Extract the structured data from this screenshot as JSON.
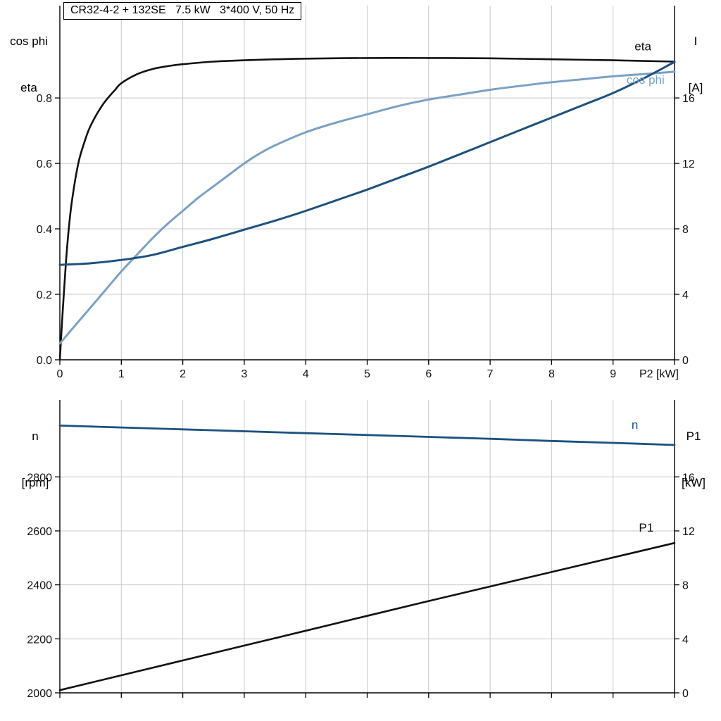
{
  "colors": {
    "black": "#111111",
    "dark_blue": "#1c517f",
    "light_blue": "#7aa1c6",
    "grid": "#c8c8c8",
    "axis": "#000000"
  },
  "chart_data": [
    {
      "type": "line",
      "title": "CR32-4-2 + 132SE   7.5 kW   3*400 V, 50 Hz",
      "x_axis": {
        "min": 0,
        "max": 10,
        "label": "P2 [kW]",
        "ticks": [
          {
            "v": 0,
            "label": "0"
          },
          {
            "v": 1,
            "label": "1"
          },
          {
            "v": 2,
            "label": "2"
          },
          {
            "v": 3,
            "label": "3"
          },
          {
            "v": 4,
            "label": "4"
          },
          {
            "v": 5,
            "label": "5"
          },
          {
            "v": 6,
            "label": "6"
          },
          {
            "v": 7,
            "label": "7"
          },
          {
            "v": 8,
            "label": "8"
          },
          {
            "v": 9,
            "label": "9"
          },
          {
            "v": 10,
            "label": ""
          }
        ]
      },
      "left_axis": {
        "label_line1": "cos phi",
        "label_line2": "eta",
        "min": 0,
        "max": 1.082,
        "ticks": [
          {
            "v": 0,
            "label": "0.0"
          },
          {
            "v": 0.2,
            "label": "0.2"
          },
          {
            "v": 0.4,
            "label": "0.4"
          },
          {
            "v": 0.6,
            "label": "0.6"
          },
          {
            "v": 0.8,
            "label": "0.8"
          }
        ]
      },
      "right_axis": {
        "label_line1": "I",
        "label_line2": "[A]",
        "min": 0,
        "max": 21.64,
        "ticks": [
          {
            "v": 0,
            "label": "0"
          },
          {
            "v": 4,
            "label": "4"
          },
          {
            "v": 8,
            "label": "8"
          },
          {
            "v": 12,
            "label": "12"
          },
          {
            "v": 16,
            "label": "16"
          }
        ]
      },
      "series": [
        {
          "name": "eta",
          "axis": "left",
          "color_key": "black",
          "width": 2.6,
          "points": [
            [
              0,
              0
            ],
            [
              0.05,
              0.16
            ],
            [
              0.1,
              0.3
            ],
            [
              0.15,
              0.41
            ],
            [
              0.2,
              0.49
            ],
            [
              0.3,
              0.6
            ],
            [
              0.4,
              0.665
            ],
            [
              0.5,
              0.715
            ],
            [
              0.7,
              0.78
            ],
            [
              0.9,
              0.825
            ],
            [
              1,
              0.845
            ],
            [
              1.25,
              0.872
            ],
            [
              1.5,
              0.888
            ],
            [
              1.75,
              0.897
            ],
            [
              2,
              0.903
            ],
            [
              2.5,
              0.911
            ],
            [
              3,
              0.915
            ],
            [
              3.5,
              0.918
            ],
            [
              4,
              0.92
            ],
            [
              5,
              0.922
            ],
            [
              6,
              0.922
            ],
            [
              7,
              0.921
            ],
            [
              8,
              0.918
            ],
            [
              9,
              0.915
            ],
            [
              10,
              0.911
            ]
          ]
        },
        {
          "name": "cos phi",
          "axis": "left",
          "color_key": "light_blue",
          "width": 3,
          "points": [
            [
              0,
              0.05
            ],
            [
              0.25,
              0.105
            ],
            [
              0.5,
              0.16
            ],
            [
              0.75,
              0.215
            ],
            [
              1,
              0.27
            ],
            [
              1.25,
              0.32
            ],
            [
              1.5,
              0.37
            ],
            [
              1.75,
              0.415
            ],
            [
              2,
              0.455
            ],
            [
              2.25,
              0.495
            ],
            [
              2.5,
              0.53
            ],
            [
              2.75,
              0.565
            ],
            [
              3,
              0.6
            ],
            [
              3.25,
              0.63
            ],
            [
              3.5,
              0.655
            ],
            [
              4,
              0.695
            ],
            [
              4.5,
              0.725
            ],
            [
              5,
              0.75
            ],
            [
              5.5,
              0.775
            ],
            [
              6,
              0.795
            ],
            [
              6.5,
              0.81
            ],
            [
              7,
              0.825
            ],
            [
              7.5,
              0.837
            ],
            [
              8,
              0.848
            ],
            [
              8.5,
              0.857
            ],
            [
              9,
              0.866
            ],
            [
              9.5,
              0.873
            ],
            [
              10,
              0.88
            ]
          ]
        },
        {
          "name": "I",
          "axis": "right",
          "color_key": "dark_blue",
          "width": 3,
          "points": [
            [
              0,
              5.8
            ],
            [
              0.5,
              5.9
            ],
            [
              1,
              6.1
            ],
            [
              1.5,
              6.4
            ],
            [
              2,
              6.9
            ],
            [
              2.5,
              7.4
            ],
            [
              3,
              7.95
            ],
            [
              3.5,
              8.5
            ],
            [
              4,
              9.1
            ],
            [
              4.5,
              9.75
            ],
            [
              5,
              10.4
            ],
            [
              5.5,
              11.1
            ],
            [
              6,
              11.8
            ],
            [
              6.5,
              12.55
            ],
            [
              7,
              13.3
            ],
            [
              7.5,
              14.05
            ],
            [
              8,
              14.8
            ],
            [
              8.5,
              15.55
            ],
            [
              9,
              16.3
            ],
            [
              9.5,
              17.2
            ],
            [
              10,
              18.2
            ]
          ]
        }
      ],
      "annotations": [
        {
          "text": "eta",
          "color_key": "black",
          "x": 9.35,
          "v": 0.945,
          "axis": "left"
        },
        {
          "text": "cos phi",
          "color_key": "light_blue",
          "x": 9.22,
          "v": 0.843,
          "axis": "left"
        }
      ]
    },
    {
      "type": "line",
      "x_axis": {
        "min": 0,
        "max": 10,
        "label": "",
        "ticks": [
          {
            "v": 0,
            "label": ""
          },
          {
            "v": 1,
            "label": ""
          },
          {
            "v": 2,
            "label": ""
          },
          {
            "v": 3,
            "label": ""
          },
          {
            "v": 4,
            "label": ""
          },
          {
            "v": 5,
            "label": ""
          },
          {
            "v": 6,
            "label": ""
          },
          {
            "v": 7,
            "label": ""
          },
          {
            "v": 8,
            "label": ""
          },
          {
            "v": 9,
            "label": ""
          },
          {
            "v": 10,
            "label": ""
          }
        ]
      },
      "left_axis": {
        "label_line1": "n",
        "label_line2": "[rpm]",
        "min": 2000,
        "max": 3085,
        "ticks": [
          {
            "v": 2000,
            "label": "2000"
          },
          {
            "v": 2200,
            "label": "2200"
          },
          {
            "v": 2400,
            "label": "2400"
          },
          {
            "v": 2600,
            "label": "2600"
          },
          {
            "v": 2800,
            "label": "2800"
          }
        ]
      },
      "right_axis": {
        "label_line1": "P1",
        "label_line2": "[kW]",
        "min": 0,
        "max": 21.7,
        "ticks": [
          {
            "v": 0,
            "label": "0"
          },
          {
            "v": 4,
            "label": "4"
          },
          {
            "v": 8,
            "label": "8"
          },
          {
            "v": 12,
            "label": "12"
          },
          {
            "v": 16,
            "label": "16"
          }
        ]
      },
      "series": [
        {
          "name": "n",
          "axis": "left",
          "color_key": "dark_blue",
          "width": 2.8,
          "points": [
            [
              0,
              2990
            ],
            [
              1,
              2983
            ],
            [
              2,
              2976
            ],
            [
              3,
              2969
            ],
            [
              4,
              2962
            ],
            [
              5,
              2955
            ],
            [
              6,
              2948
            ],
            [
              7,
              2941
            ],
            [
              8,
              2933
            ],
            [
              9,
              2926
            ],
            [
              10,
              2918
            ]
          ]
        },
        {
          "name": "P1",
          "axis": "right",
          "color_key": "black",
          "width": 2.6,
          "points": [
            [
              0,
              0.2
            ],
            [
              2,
              2.4
            ],
            [
              4,
              4.6
            ],
            [
              6,
              6.8
            ],
            [
              8,
              8.95
            ],
            [
              10,
              11.1
            ]
          ]
        }
      ],
      "annotations": [
        {
          "text": "n",
          "color_key": "dark_blue",
          "x": 9.3,
          "v": 2978,
          "axis": "left"
        },
        {
          "text": "P1",
          "color_key": "black",
          "x": 9.42,
          "v": 11.95,
          "axis": "right"
        }
      ]
    }
  ]
}
